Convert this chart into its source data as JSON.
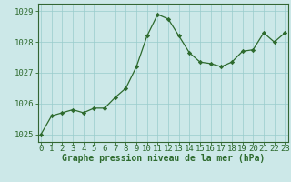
{
  "x": [
    0,
    1,
    2,
    3,
    4,
    5,
    6,
    7,
    8,
    9,
    10,
    11,
    12,
    13,
    14,
    15,
    16,
    17,
    18,
    19,
    20,
    21,
    22,
    23
  ],
  "y": [
    1025.0,
    1025.6,
    1025.7,
    1025.8,
    1025.7,
    1025.85,
    1025.85,
    1026.2,
    1026.5,
    1027.2,
    1028.2,
    1028.9,
    1028.75,
    1028.2,
    1027.65,
    1027.35,
    1027.3,
    1027.2,
    1027.35,
    1027.7,
    1027.75,
    1028.3,
    1028.0,
    1028.3
  ],
  "line_color": "#2d6a2d",
  "marker": "D",
  "marker_size": 2.2,
  "bg_color": "#cce8e8",
  "grid_color": "#99cccc",
  "axis_color": "#336633",
  "tick_label_color": "#2d6a2d",
  "xlabel": "Graphe pression niveau de la mer (hPa)",
  "xlabel_color": "#2d6a2d",
  "ylim": [
    1024.75,
    1029.25
  ],
  "yticks": [
    1025,
    1026,
    1027,
    1028,
    1029
  ],
  "xticks": [
    0,
    1,
    2,
    3,
    4,
    5,
    6,
    7,
    8,
    9,
    10,
    11,
    12,
    13,
    14,
    15,
    16,
    17,
    18,
    19,
    20,
    21,
    22,
    23
  ],
  "xlabel_fontsize": 7.0,
  "tick_fontsize": 6.5,
  "xlim": [
    -0.3,
    23.3
  ]
}
